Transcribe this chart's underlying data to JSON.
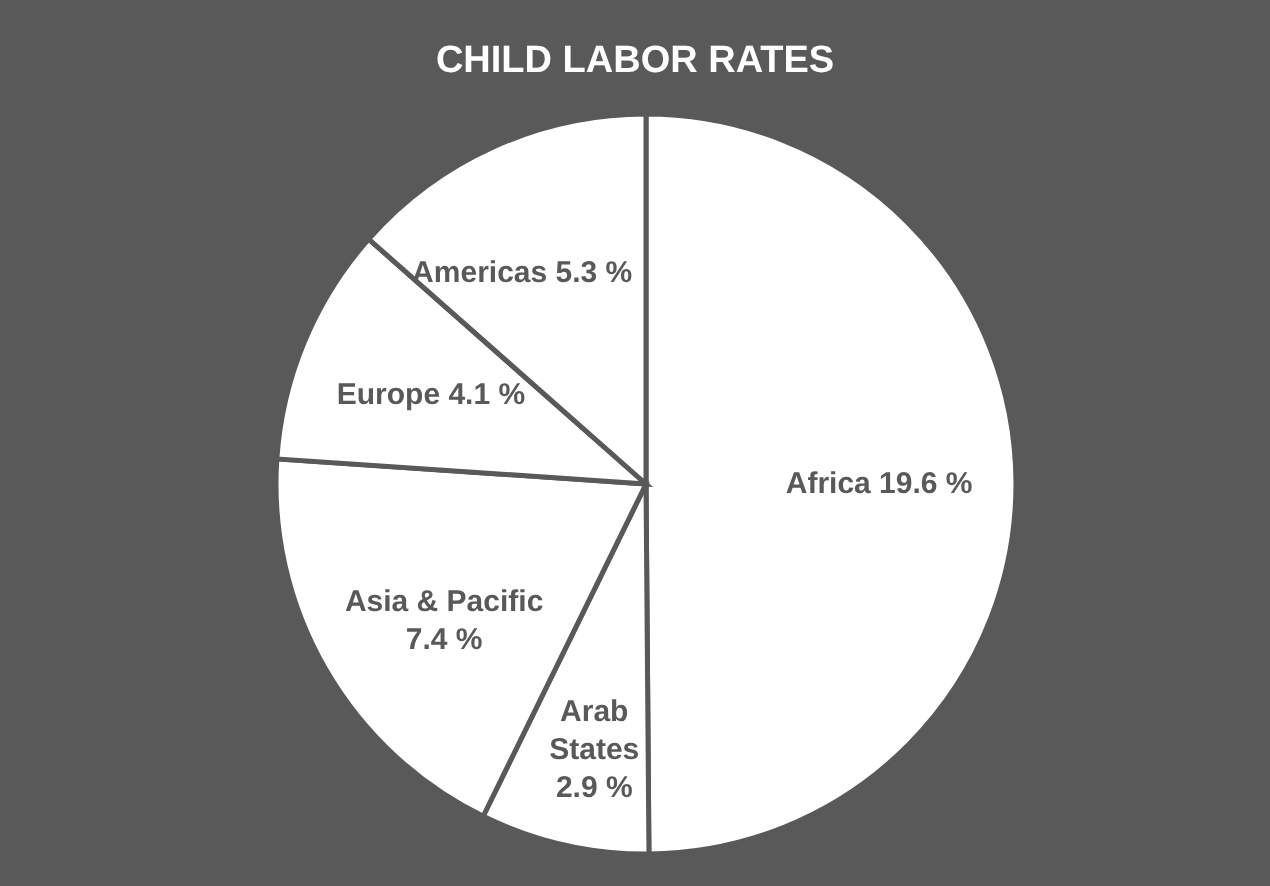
{
  "chart_data": {
    "type": "pie",
    "title": "CHILD LABOR RATES",
    "categories": [
      "Africa",
      "Arab States",
      "Asia & Pacific",
      "Europe",
      "Americas"
    ],
    "values": [
      19.6,
      2.9,
      7.4,
      4.1,
      5.3
    ],
    "value_labels": [
      "19.6 %",
      "2.9 %",
      "7.4 %",
      "4.1 %",
      "5.3 %"
    ],
    "colors": [
      "#ffffff",
      "#ffffff",
      "#ffffff",
      "#ffffff",
      "#ffffff"
    ]
  }
}
